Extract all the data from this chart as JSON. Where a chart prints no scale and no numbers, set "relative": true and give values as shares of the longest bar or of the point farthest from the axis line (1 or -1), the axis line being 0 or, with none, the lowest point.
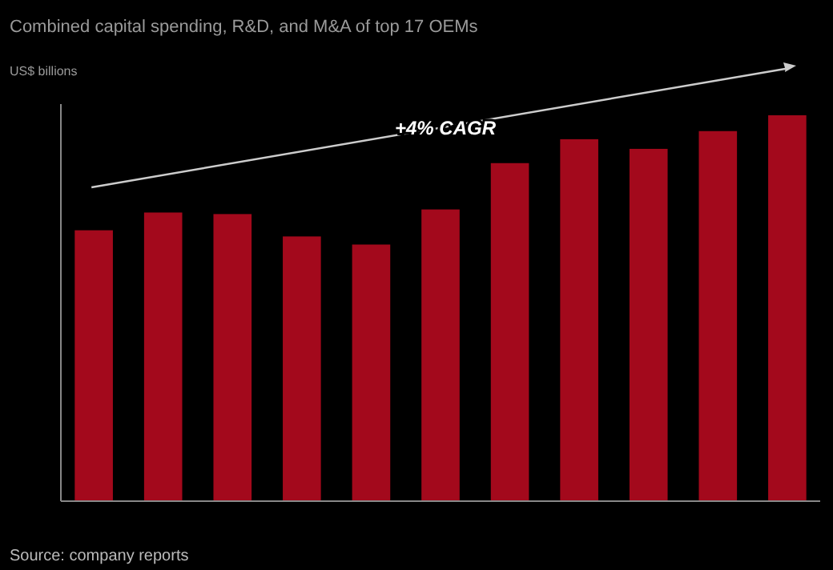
{
  "chart_data": {
    "type": "bar",
    "title": "Combined capital spending, R&D, and M&A of top 17 OEMs",
    "subtitle": "US$ billions",
    "relative": true,
    "categories": [
      null,
      null,
      null,
      null,
      null,
      null,
      null,
      null,
      null,
      null,
      null
    ],
    "values": [
      0.702,
      0.748,
      0.744,
      0.686,
      0.665,
      0.756,
      0.876,
      0.938,
      0.913,
      0.959,
      1
    ],
    "color": "#a3091c",
    "annotations": [
      "+4% CAGR",
      "Source: company reports"
    ]
  }
}
